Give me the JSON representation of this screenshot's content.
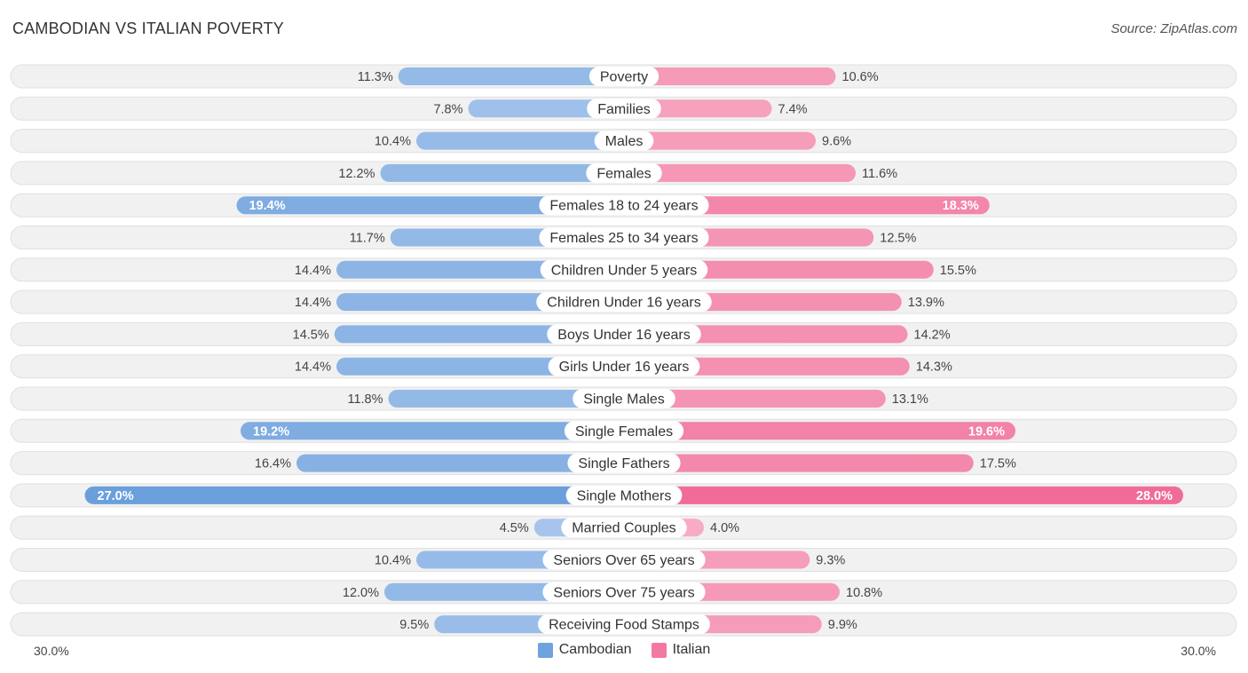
{
  "header": {
    "title": "CAMBODIAN VS ITALIAN POVERTY",
    "source": "Source: ZipAtlas.com"
  },
  "axis": {
    "left_label": "30.0%",
    "right_label": "30.0%"
  },
  "legend": {
    "left": {
      "label": "Cambodian",
      "color": "#6ea3dd"
    },
    "right": {
      "label": "Italian",
      "color": "#f27aa2"
    }
  },
  "chart_data": {
    "type": "bar",
    "orientation": "horizontal-diverging",
    "title": "CAMBODIAN VS ITALIAN POVERTY",
    "xlim": [
      -30,
      30
    ],
    "unit": "%",
    "categories": [
      "Poverty",
      "Families",
      "Males",
      "Females",
      "Females 18 to 24 years",
      "Females 25 to 34 years",
      "Children Under 5 years",
      "Children Under 16 years",
      "Boys Under 16 years",
      "Girls Under 16 years",
      "Single Males",
      "Single Females",
      "Single Fathers",
      "Single Mothers",
      "Married Couples",
      "Seniors Over 65 years",
      "Seniors Over 75 years",
      "Receiving Food Stamps"
    ],
    "series": [
      {
        "name": "Cambodian",
        "values": [
          11.3,
          7.8,
          10.4,
          12.2,
          19.4,
          11.7,
          14.4,
          14.4,
          14.5,
          14.4,
          11.8,
          19.2,
          16.4,
          27.0,
          4.5,
          10.4,
          12.0,
          9.5
        ]
      },
      {
        "name": "Italian",
        "values": [
          10.6,
          7.4,
          9.6,
          11.6,
          18.3,
          12.5,
          15.5,
          13.9,
          14.2,
          14.3,
          13.1,
          19.6,
          17.5,
          28.0,
          4.0,
          9.3,
          10.8,
          9.9
        ]
      }
    ],
    "value_labels_left": [
      "11.3%",
      "7.8%",
      "10.4%",
      "12.2%",
      "19.4%",
      "11.7%",
      "14.4%",
      "14.4%",
      "14.5%",
      "14.4%",
      "11.8%",
      "19.2%",
      "16.4%",
      "27.0%",
      "4.5%",
      "10.4%",
      "12.0%",
      "9.5%"
    ],
    "value_labels_right": [
      "10.6%",
      "7.4%",
      "9.6%",
      "11.6%",
      "18.3%",
      "12.5%",
      "15.5%",
      "13.9%",
      "14.2%",
      "14.3%",
      "13.1%",
      "19.6%",
      "17.5%",
      "28.0%",
      "4.0%",
      "9.3%",
      "10.8%",
      "9.9%"
    ]
  }
}
